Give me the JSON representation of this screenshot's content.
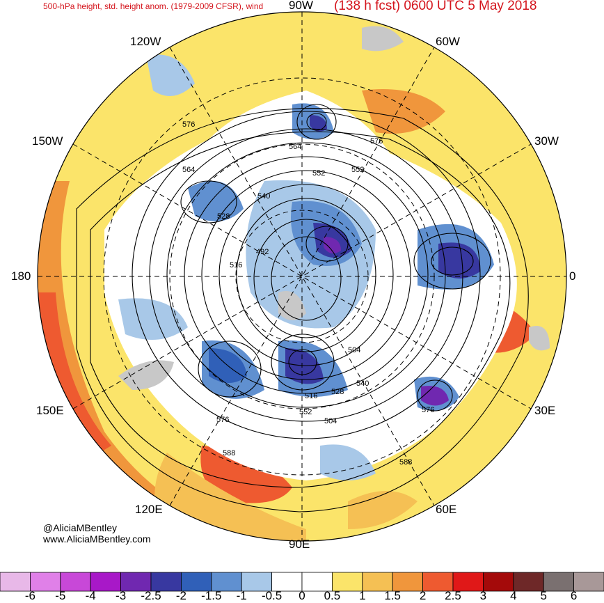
{
  "header": {
    "left_title": "500-hPa height, std. height anom. (1979-2009 CFSR), wind",
    "right_title": "(138 h fcst) 0600 UTC 5 May 2018"
  },
  "longitude_labels": {
    "top": "90W",
    "upper_right": "60W",
    "right_upper": "30W",
    "right": "0",
    "lower_right": "30E",
    "bottom_right": "60E",
    "bottom": "90E",
    "bottom_left": "120E",
    "left_lower": "150E",
    "left": "180",
    "left_upper": "150W",
    "upper_left": "120W"
  },
  "contour_labels": [
    "576",
    "564",
    "552",
    "540",
    "528",
    "516",
    "492",
    "576",
    "564",
    "552",
    "504",
    "540",
    "528",
    "516",
    "552",
    "504",
    "576",
    "588",
    "576",
    "588"
  ],
  "credit": {
    "handle": "@AliciaMBentley",
    "url": "www.AliciaMBentley.com"
  },
  "colorbar": {
    "ticks": [
      "-6",
      "-5",
      "-4",
      "-3",
      "-2.5",
      "-2",
      "-1.5",
      "-1",
      "-0.5",
      "0",
      "0.5",
      "1",
      "1.5",
      "2",
      "2.5",
      "3",
      "4",
      "5",
      "6"
    ],
    "colors": [
      "#e8b8e8",
      "#e080e8",
      "#c848d8",
      "#a818c8",
      "#7028b0",
      "#3838a0",
      "#3060b8",
      "#6090d0",
      "#a8c8e8",
      "#ffffff",
      "#ffffff",
      "#fbe46a",
      "#f5c054",
      "#f0963c",
      "#ee5a30",
      "#e01818",
      "#a40a0a",
      "#6e2828",
      "#7a7070",
      "#a89898"
    ]
  }
}
